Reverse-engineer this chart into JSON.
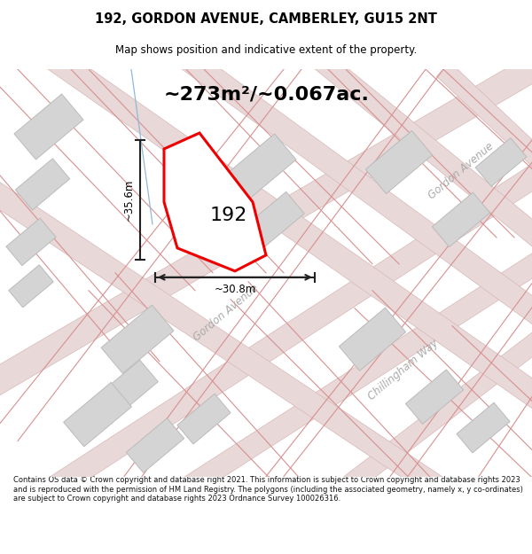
{
  "title": "192, GORDON AVENUE, CAMBERLEY, GU15 2NT",
  "subtitle": "Map shows position and indicative extent of the property.",
  "area_text": "~273m²/~0.067ac.",
  "label_192": "192",
  "dim_vertical": "~35.6m",
  "dim_horizontal": "~30.8m",
  "footer": "Contains OS data © Crown copyright and database right 2021. This information is subject to Crown copyright and database rights 2023 and is reproduced with the permission of HM Land Registry. The polygons (including the associated geometry, namely x, y co-ordinates) are subject to Crown copyright and database rights 2023 Ordnance Survey 100026316.",
  "map_bg": "#eeeeee",
  "block_fc": "#d4d4d4",
  "block_ec": "#bbbbbb",
  "red_plot": "#ee0000",
  "road_fill": "#e8d8d8",
  "road_line": "#d8b8b8",
  "dim_color": "#222222",
  "street_color": "#aaaaaa",
  "blue_line": "#90b8d8",
  "title_color": "#000000",
  "footer_color": "#111111"
}
